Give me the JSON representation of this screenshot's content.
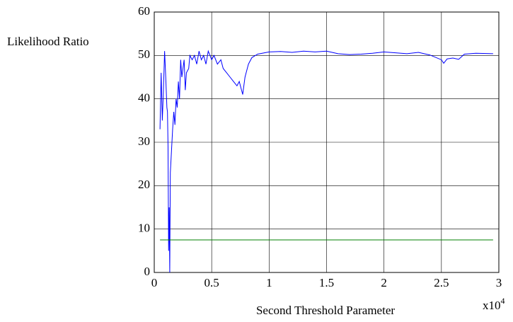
{
  "chart_data": {
    "type": "line",
    "ylabel": "Likelihood Ratio",
    "xlabel": "Second Threshold Parameter",
    "x_multiplier": {
      "base": "x10",
      "exponent": "4"
    },
    "xlim": [
      0,
      3
    ],
    "ylim": [
      0,
      60
    ],
    "xticks": [
      0,
      0.5,
      1,
      1.5,
      2,
      2.5,
      3
    ],
    "yticks": [
      0,
      10,
      20,
      30,
      40,
      50,
      60
    ],
    "grid": true,
    "series": [
      {
        "color": "#0000ff",
        "x": [
          0.05,
          0.06,
          0.07,
          0.08,
          0.09,
          0.1,
          0.11,
          0.115,
          0.12,
          0.125,
          0.13,
          0.135,
          0.14,
          0.15,
          0.16,
          0.17,
          0.18,
          0.19,
          0.2,
          0.21,
          0.22,
          0.23,
          0.24,
          0.26,
          0.27,
          0.28,
          0.3,
          0.31,
          0.33,
          0.35,
          0.37,
          0.39,
          0.41,
          0.43,
          0.45,
          0.47,
          0.5,
          0.52,
          0.55,
          0.58,
          0.6,
          0.63,
          0.66,
          0.69,
          0.72,
          0.74,
          0.76,
          0.77,
          0.79,
          0.82,
          0.85,
          0.9,
          1.0,
          1.1,
          1.2,
          1.3,
          1.4,
          1.5,
          1.6,
          1.7,
          1.8,
          1.9,
          2.0,
          2.1,
          2.2,
          2.3,
          2.4,
          2.5,
          2.52,
          2.55,
          2.6,
          2.65,
          2.7,
          2.8,
          2.95
        ],
        "values": [
          33,
          46,
          35,
          42,
          51,
          45,
          38,
          37,
          29,
          5,
          15,
          0,
          23,
          28,
          33,
          37,
          34,
          40,
          38,
          44,
          40,
          49,
          45,
          49,
          42,
          46,
          47,
          50,
          49,
          50,
          48,
          51,
          49,
          50,
          48,
          51,
          49,
          50,
          48,
          49,
          47,
          46,
          45,
          44,
          43,
          44,
          42,
          41,
          45,
          48,
          49.5,
          50.3,
          50.8,
          50.9,
          50.7,
          51,
          50.8,
          51,
          50.4,
          50.2,
          50.3,
          50.5,
          50.8,
          50.6,
          50.4,
          50.7,
          50.1,
          49,
          48.2,
          49.2,
          49.4,
          49.1,
          50.3,
          50.5,
          50.4
        ]
      },
      {
        "color": "#008000",
        "x": [
          0.05,
          2.95
        ],
        "values": [
          7.5,
          7.5
        ]
      }
    ]
  }
}
